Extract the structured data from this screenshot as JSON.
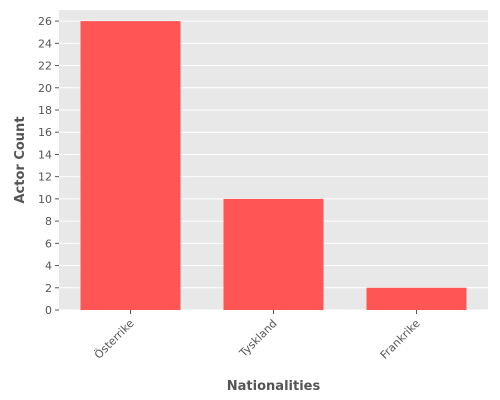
{
  "chart_data": {
    "type": "bar",
    "categories": [
      "Österrike",
      "Tyskland",
      "Frankrike"
    ],
    "values": [
      26,
      10,
      2
    ],
    "title": "",
    "xlabel": "Nationalities",
    "ylabel": "Actor Count",
    "ylim": [
      0,
      27
    ],
    "yticks": [
      0,
      2,
      4,
      6,
      8,
      10,
      12,
      14,
      16,
      18,
      20,
      22,
      24,
      26
    ],
    "grid": true,
    "bar_color": "#ff5555",
    "plot_background": "#e8e8e8",
    "grid_color": "#ffffff"
  }
}
